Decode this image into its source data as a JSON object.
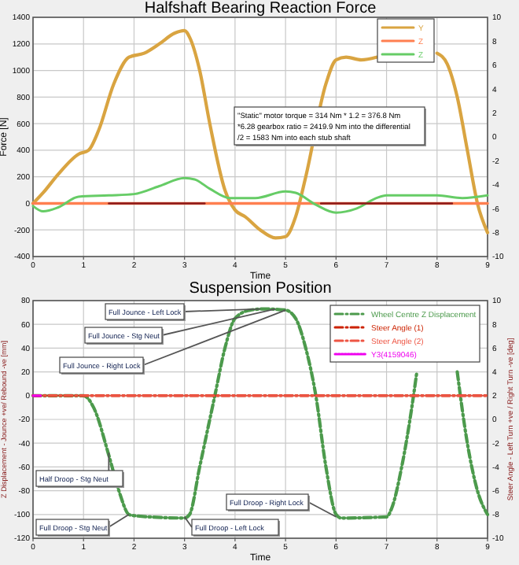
{
  "chart_data": [
    {
      "type": "line",
      "title": "Halfshaft Bearing Reaction Force",
      "xlabel": "Time",
      "ylabel": "Force [N]",
      "xlim": [
        0,
        9
      ],
      "xticks": [
        0,
        1,
        2,
        3,
        4,
        5,
        6,
        7,
        8,
        9
      ],
      "ylim": [
        -400,
        1400
      ],
      "yticks": [
        -400,
        -200,
        0,
        200,
        400,
        600,
        800,
        1000,
        1200,
        1400
      ],
      "y2lim": [
        -10,
        10
      ],
      "y2ticks": [
        -10,
        -8,
        -6,
        -4,
        -2,
        0,
        2,
        4,
        6,
        8,
        10
      ],
      "grid": true,
      "legend": "top right",
      "line_style": "solid",
      "marker": "none",
      "annotations": [
        "\"Static\" motor torque = 314 Nm * 1.2 = 376.8 Nm\n*6.28 gearbox ratio = 2419.9 Nm into the differential\n/2 = 1583 Nm into each stub shaft"
      ],
      "series": [
        {
          "name": "Y",
          "color": "#d9a441",
          "x": [
            0,
            0.2,
            0.5,
            0.9,
            1.1,
            1.3,
            1.6,
            1.9,
            2.2,
            2.5,
            2.8,
            3,
            3.1,
            3.3,
            3.5,
            3.8,
            4,
            4.2,
            4.5,
            4.8,
            5,
            5.2,
            5.4,
            5.8,
            6,
            6.2,
            6.5,
            6.8,
            7,
            7.5,
            8,
            8.2,
            8.4,
            8.6,
            8.8,
            9
          ],
          "values": [
            0,
            80,
            220,
            370,
            400,
            550,
            900,
            1100,
            1130,
            1200,
            1280,
            1300,
            1250,
            1000,
            600,
            100,
            -50,
            -100,
            -200,
            -260,
            -250,
            -100,
            200,
            900,
            1080,
            1100,
            1080,
            1100,
            null,
            null,
            1130,
            1050,
            800,
            400,
            0,
            -220
          ]
        },
        {
          "name": "Z",
          "color": "#ff7f50",
          "x": [
            0,
            9
          ],
          "values": [
            0,
            0
          ]
        },
        {
          "name": "Z",
          "color": "#66cc66",
          "x": [
            0,
            0.2,
            0.5,
            0.9,
            1.5,
            2,
            2.5,
            3,
            3.2,
            3.5,
            3.9,
            4.4,
            5,
            5.2,
            5.6,
            6,
            6.4,
            6.8,
            7,
            8,
            8.5,
            9
          ],
          "values": [
            -20,
            -60,
            -30,
            50,
            60,
            70,
            130,
            190,
            180,
            110,
            40,
            40,
            90,
            80,
            -10,
            -70,
            -40,
            40,
            60,
            60,
            40,
            60
          ]
        },
        {
          "color": "#8b1a1a",
          "x": [
            1.5,
            3.4,
            3.45,
            5.7,
            8.3
          ],
          "values": [
            0,
            0,
            null,
            0,
            0
          ]
        }
      ]
    },
    {
      "type": "line",
      "title": "Suspension Position",
      "xlabel": "Time",
      "ylabel": "Z Displacement - Jounce +ve/ Rebound -ve [mm]",
      "y2label": "Steer Angle - Left Turn +ve / Right Turn -ve [deg]",
      "xlim": [
        0,
        9
      ],
      "xticks": [
        0,
        1,
        2,
        3,
        4,
        5,
        6,
        7,
        8,
        9
      ],
      "ylim": [
        -120,
        80
      ],
      "yticks": [
        -120,
        -100,
        -80,
        -60,
        -40,
        -20,
        0,
        20,
        40,
        60,
        80
      ],
      "y2lim": [
        -10,
        10
      ],
      "y2ticks": [
        -10,
        -8,
        -6,
        -4,
        -2,
        0,
        2,
        4,
        6,
        8,
        10
      ],
      "grid": true,
      "legend": "top right",
      "marker": "none",
      "annotations": [
        {
          "text": "Full Jounce - Left Lock",
          "x": 4.5,
          "y": 73
        },
        {
          "text": "Full Jounce - Stg Neut",
          "x": 4.8,
          "y": 73
        },
        {
          "text": "Full Jounce - Right Lock",
          "x": 5,
          "y": 72
        },
        {
          "text": "Half Droop - Stg Neut",
          "x": 1.5,
          "y": -48
        },
        {
          "text": "Full Droop - Stg Neut",
          "x": 1.9,
          "y": -100
        },
        {
          "text": "Full Droop - Left Lock",
          "x": 3,
          "y": -102
        },
        {
          "text": "Full Droop - Right Lock",
          "x": 6,
          "y": -102
        }
      ],
      "series": [
        {
          "name": "Wheel Centre Z Displacement",
          "color": "#4c9a4c",
          "line_style": "dashed",
          "x": [
            0,
            1,
            1.2,
            1.5,
            1.7,
            1.9,
            2,
            3,
            3.1,
            3.3,
            3.5,
            3.6,
            3.8,
            4,
            4.3,
            4.6,
            5,
            5.2,
            5.4,
            5.6,
            5.8,
            6,
            6.1,
            7,
            7.1,
            7.3,
            7.5,
            7.6,
            7.8,
            8.4,
            8.6,
            8.8,
            9
          ],
          "values": [
            0,
            0,
            -10,
            -50,
            -80,
            -100,
            -101,
            -103,
            -100,
            -60,
            -20,
            0,
            40,
            65,
            72,
            73,
            72,
            65,
            40,
            0,
            -60,
            -100,
            -103,
            -102,
            -95,
            -60,
            -10,
            20,
            null,
            20,
            -40,
            -80,
            -100
          ]
        },
        {
          "name": "Steer Angle (1)",
          "color": "#cc2200",
          "line_style": "dashed",
          "axis": "y2",
          "x": [
            0,
            9
          ],
          "values": [
            2,
            2
          ]
        },
        {
          "name": "Steer Angle (2)",
          "color": "#ee5544",
          "line_style": "dashed",
          "axis": "y2",
          "x": [
            0,
            9
          ],
          "values": [
            2,
            2
          ]
        },
        {
          "name": "Y3(4159046)",
          "color": "#ee00ee",
          "line_style": "dotted",
          "x": [
            0,
            0.15
          ],
          "values": [
            0,
            0
          ]
        }
      ]
    }
  ]
}
